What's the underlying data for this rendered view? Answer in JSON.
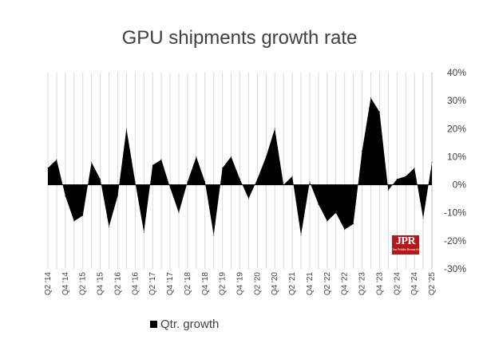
{
  "chart_data": {
    "type": "area",
    "title": "GPU shipments growth rate",
    "xlabel": "",
    "ylabel": "",
    "ylim": [
      -30,
      40
    ],
    "y_ticks": [
      "40%",
      "30%",
      "20%",
      "10%",
      "0%",
      "-10%",
      "-20%",
      "-30%"
    ],
    "grid": "vertical",
    "legend_position": "bottom-left",
    "series": [
      {
        "name": "Qtr. growth",
        "color": "#000000",
        "x": [
          "Q2 '14",
          "Q3 '14",
          "Q4 '14",
          "Q1 '15",
          "Q2 '15",
          "Q3 '15",
          "Q4 '15",
          "Q1 '16",
          "Q2 '16",
          "Q3 '16",
          "Q4 '16",
          "Q1 '17",
          "Q2 '17",
          "Q3 '17",
          "Q4 '17",
          "Q1 '18",
          "Q2 '18",
          "Q3 '18",
          "Q4 '18",
          "Q1 '19",
          "Q2 '19",
          "Q3 '19",
          "Q4 '19",
          "Q1 '20",
          "Q2 '20",
          "Q3 '20",
          "Q4 '20",
          "Q1 '21",
          "Q2 '21",
          "Q3 '21",
          "Q4 '21",
          "Q1 '22",
          "Q2 '22",
          "Q3 '22",
          "Q4 '22",
          "Q1 '23",
          "Q2 '23",
          "Q3 '23",
          "Q4 '23",
          "Q1 '24",
          "Q2 '24",
          "Q3 '24",
          "Q4 '24",
          "Q1 '25",
          "Q2 '25"
        ],
        "values": [
          6,
          9,
          -4,
          -13,
          -11,
          8,
          2,
          -15,
          -4,
          20,
          1,
          -17,
          7,
          9,
          -1,
          -10,
          1,
          10,
          1,
          -18,
          6,
          10,
          2,
          -5,
          2,
          10,
          20,
          0,
          3,
          -18,
          1,
          -7,
          -13,
          -10,
          -16,
          -14,
          12,
          31,
          26,
          -2,
          2,
          3,
          6,
          -12,
          8
        ]
      }
    ],
    "x_tick_labels": [
      "Q2 '14",
      "Q4 '14",
      "Q2 '15",
      "Q4 '15",
      "Q2 '16",
      "Q4 '16",
      "Q2 '17",
      "Q4 '17",
      "Q2 '18",
      "Q4 '18",
      "Q2 '19",
      "Q4 '19",
      "Q2 '20",
      "Q4 '20",
      "Q2 '21",
      "Q4 '21",
      "Q2 '22",
      "Q4 '22",
      "Q2 '23",
      "Q4 '23",
      "Q2 '24",
      "Q4 '24",
      "Q2 '25"
    ]
  },
  "logo": {
    "text": "JPR",
    "subtext": "Jon Peddie Research",
    "color": "#b5181b"
  }
}
